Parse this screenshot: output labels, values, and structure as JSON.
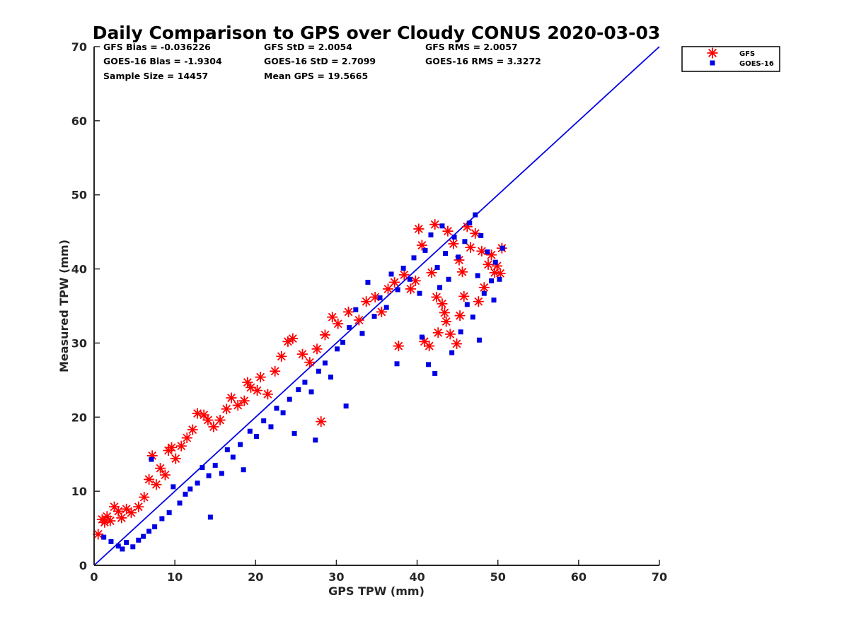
{
  "chart_data": {
    "type": "scatter",
    "title": "Daily Comparison to GPS over Cloudy CONUS 2020-03-03",
    "xlabel": "GPS TPW (mm)",
    "ylabel": "Measured TPW (mm)",
    "xlim": [
      0,
      70
    ],
    "ylim": [
      0,
      70
    ],
    "xticks": [
      "0",
      "10",
      "20",
      "30",
      "40",
      "50",
      "60",
      "70"
    ],
    "yticks": [
      "0",
      "10",
      "20",
      "30",
      "40",
      "50",
      "60",
      "70"
    ],
    "grid": false,
    "legend_position": "outside-top-right",
    "stats": [
      [
        "GFS Bias = -0.036226",
        "GFS StD = 2.0054",
        "GFS RMS = 2.0057"
      ],
      [
        "GOES-16 Bias = -1.9304",
        "GOES-16 StD = 2.7099",
        "GOES-16 RMS = 3.3272"
      ],
      [
        "Sample Size = 14457",
        "Mean GPS = 19.5665"
      ]
    ],
    "reference_line": {
      "x": [
        0,
        70
      ],
      "y": [
        0,
        70
      ],
      "color": "#0000e6"
    },
    "series": [
      {
        "name": "GFS",
        "marker": "asterisk",
        "color": "#ff0000",
        "points": [
          [
            0.5,
            4.2
          ],
          [
            1,
            6.2
          ],
          [
            1.3,
            5.8
          ],
          [
            1.6,
            6.6
          ],
          [
            2,
            6
          ],
          [
            2.5,
            7.9
          ],
          [
            3,
            7.3
          ],
          [
            3.4,
            6.4
          ],
          [
            4,
            7.6
          ],
          [
            4.6,
            7.1
          ],
          [
            5.5,
            7.9
          ],
          [
            6.2,
            9.2
          ],
          [
            6.8,
            11.6
          ],
          [
            7.2,
            14.8
          ],
          [
            7.7,
            10.9
          ],
          [
            8.2,
            13.1
          ],
          [
            8.8,
            12.2
          ],
          [
            9.2,
            15.5
          ],
          [
            9.6,
            15.9
          ],
          [
            10.1,
            14.4
          ],
          [
            10.8,
            16.1
          ],
          [
            11.5,
            17.2
          ],
          [
            12.2,
            18.3
          ],
          [
            12.8,
            20.5
          ],
          [
            13.6,
            20.3
          ],
          [
            14.1,
            19.6
          ],
          [
            14.8,
            18.7
          ],
          [
            15.6,
            19.6
          ],
          [
            16.4,
            21.1
          ],
          [
            17,
            22.6
          ],
          [
            17.8,
            21.6
          ],
          [
            18.6,
            22.2
          ],
          [
            19,
            24.7
          ],
          [
            19.4,
            24
          ],
          [
            20.2,
            23.6
          ],
          [
            20.6,
            25.4
          ],
          [
            21.5,
            23.1
          ],
          [
            22.4,
            26.2
          ],
          [
            23.2,
            28.2
          ],
          [
            24,
            30.2
          ],
          [
            24.6,
            30.6
          ],
          [
            25.8,
            28.5
          ],
          [
            26.7,
            27.4
          ],
          [
            27.6,
            29.2
          ],
          [
            28.1,
            19.4
          ],
          [
            28.6,
            31.1
          ],
          [
            29.5,
            33.5
          ],
          [
            30.2,
            32.6
          ],
          [
            31.5,
            34.2
          ],
          [
            32.8,
            33.1
          ],
          [
            33.7,
            35.6
          ],
          [
            34.8,
            36.2
          ],
          [
            35.6,
            34.2
          ],
          [
            36.4,
            37.3
          ],
          [
            37.2,
            38.2
          ],
          [
            37.7,
            29.6
          ],
          [
            38.4,
            39.2
          ],
          [
            39.2,
            37.3
          ],
          [
            39.8,
            38.4
          ],
          [
            40.2,
            45.4
          ],
          [
            40.6,
            43.2
          ],
          [
            40.9,
            30.2
          ],
          [
            41.5,
            29.6
          ],
          [
            41.8,
            39.5
          ],
          [
            42.2,
            46
          ],
          [
            42.4,
            36.2
          ],
          [
            42.6,
            31.4
          ],
          [
            43.1,
            35.3
          ],
          [
            43.4,
            34.1
          ],
          [
            43.6,
            32.9
          ],
          [
            43.8,
            45.1
          ],
          [
            44.1,
            31.2
          ],
          [
            44.5,
            43.4
          ],
          [
            44.9,
            29.9
          ],
          [
            45.3,
            33.7
          ],
          [
            45.2,
            41.2
          ],
          [
            45.6,
            39.6
          ],
          [
            45.8,
            36.3
          ],
          [
            46.2,
            45.7
          ],
          [
            46.6,
            42.9
          ],
          [
            47.2,
            44.8
          ],
          [
            47.6,
            35.6
          ],
          [
            48,
            42.4
          ],
          [
            48.3,
            37.5
          ],
          [
            48.8,
            40.6
          ],
          [
            49.2,
            41.9
          ],
          [
            49.6,
            39.5
          ],
          [
            49.9,
            40.4
          ],
          [
            50.3,
            39.4
          ],
          [
            50.5,
            42.8
          ]
        ]
      },
      {
        "name": "GOES-16",
        "marker": "square",
        "color": "#0000e6",
        "points": [
          [
            1.2,
            3.8
          ],
          [
            2.1,
            3.2
          ],
          [
            3,
            2.6
          ],
          [
            3.5,
            2.2
          ],
          [
            4,
            3.1
          ],
          [
            4.8,
            2.5
          ],
          [
            5.5,
            3.4
          ],
          [
            6.1,
            3.9
          ],
          [
            6.8,
            4.6
          ],
          [
            7.1,
            14.3
          ],
          [
            7.5,
            5.2
          ],
          [
            8.4,
            6.3
          ],
          [
            9.3,
            7.1
          ],
          [
            9.8,
            10.6
          ],
          [
            10.6,
            8.4
          ],
          [
            11.3,
            9.6
          ],
          [
            11.9,
            10.3
          ],
          [
            12.8,
            11.1
          ],
          [
            13.4,
            13.2
          ],
          [
            14.2,
            12.1
          ],
          [
            14.4,
            6.5
          ],
          [
            15,
            13.5
          ],
          [
            15.8,
            12.4
          ],
          [
            16.5,
            15.6
          ],
          [
            17.2,
            14.6
          ],
          [
            18.1,
            16.3
          ],
          [
            18.5,
            12.9
          ],
          [
            19.3,
            18.1
          ],
          [
            20.1,
            17.4
          ],
          [
            21,
            19.5
          ],
          [
            21.9,
            18.7
          ],
          [
            22.6,
            21.2
          ],
          [
            23.4,
            20.6
          ],
          [
            24.2,
            22.4
          ],
          [
            24.8,
            17.8
          ],
          [
            25.3,
            23.7
          ],
          [
            26.1,
            24.7
          ],
          [
            26.9,
            23.4
          ],
          [
            27.4,
            16.9
          ],
          [
            27.8,
            26.2
          ],
          [
            28.6,
            27.3
          ],
          [
            29.3,
            25.4
          ],
          [
            30.1,
            29.2
          ],
          [
            30.8,
            30.1
          ],
          [
            31.2,
            21.5
          ],
          [
            31.6,
            32.1
          ],
          [
            32.4,
            34.5
          ],
          [
            33.2,
            31.3
          ],
          [
            33.9,
            38.2
          ],
          [
            34.7,
            33.6
          ],
          [
            35.4,
            36.1
          ],
          [
            36.2,
            34.8
          ],
          [
            36.8,
            39.3
          ],
          [
            37.5,
            27.2
          ],
          [
            37.6,
            37.2
          ],
          [
            38.3,
            40.1
          ],
          [
            39.1,
            38.6
          ],
          [
            39.6,
            41.5
          ],
          [
            40.3,
            36.7
          ],
          [
            40.6,
            30.8
          ],
          [
            41,
            42.5
          ],
          [
            41.4,
            27.1
          ],
          [
            41.7,
            44.6
          ],
          [
            42.2,
            25.9
          ],
          [
            42.5,
            40.2
          ],
          [
            42.8,
            37.5
          ],
          [
            43.1,
            45.8
          ],
          [
            43.5,
            42.1
          ],
          [
            43.9,
            38.6
          ],
          [
            44.3,
            28.7
          ],
          [
            44.6,
            44.3
          ],
          [
            45.1,
            41.6
          ],
          [
            45.4,
            31.5
          ],
          [
            45.9,
            43.7
          ],
          [
            46.2,
            35.2
          ],
          [
            46.5,
            46.2
          ],
          [
            46.9,
            33.5
          ],
          [
            47.2,
            47.3
          ],
          [
            47.5,
            39.1
          ],
          [
            47.7,
            30.4
          ],
          [
            47.9,
            44.5
          ],
          [
            48.3,
            36.7
          ],
          [
            48.7,
            42.3
          ],
          [
            49.2,
            38.4
          ],
          [
            49.5,
            35.8
          ],
          [
            49.7,
            40.9
          ],
          [
            50.2,
            38.6
          ],
          [
            50.6,
            42.8
          ]
        ]
      }
    ]
  }
}
